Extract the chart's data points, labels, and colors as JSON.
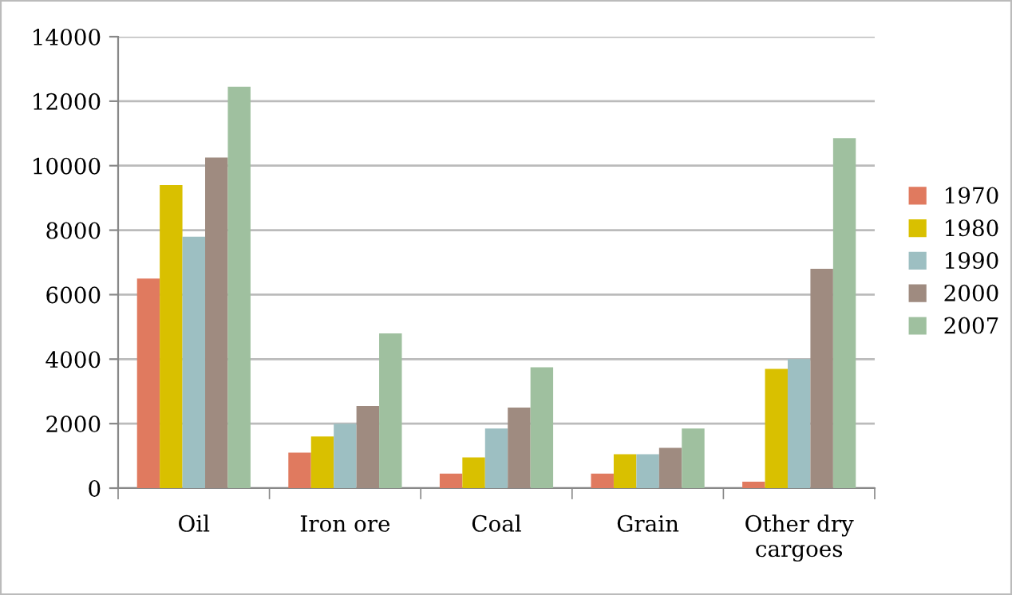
{
  "chart_data": {
    "type": "bar",
    "categories": [
      "Oil",
      "Iron ore",
      "Coal",
      "Grain",
      "Other dry\ncargoes"
    ],
    "series": [
      {
        "name": "1970",
        "color": "#e07a5f",
        "values": [
          6500,
          1100,
          450,
          450,
          200
        ]
      },
      {
        "name": "1980",
        "color": "#d9c000",
        "values": [
          9400,
          1600,
          950,
          1050,
          3700
        ]
      },
      {
        "name": "1990",
        "color": "#9dbfc2",
        "values": [
          7800,
          2000,
          1850,
          1050,
          4000
        ]
      },
      {
        "name": "2000",
        "color": "#9f8b80",
        "values": [
          10250,
          2550,
          2500,
          1250,
          6800
        ]
      },
      {
        "name": "2007",
        "color": "#9fc09f",
        "values": [
          12450,
          4800,
          3750,
          1850,
          10850
        ]
      }
    ],
    "ylim": [
      0,
      14000
    ],
    "yticks": [
      0,
      2000,
      4000,
      6000,
      8000,
      10000,
      12000,
      14000
    ],
    "grid": "y",
    "legend": "right"
  }
}
